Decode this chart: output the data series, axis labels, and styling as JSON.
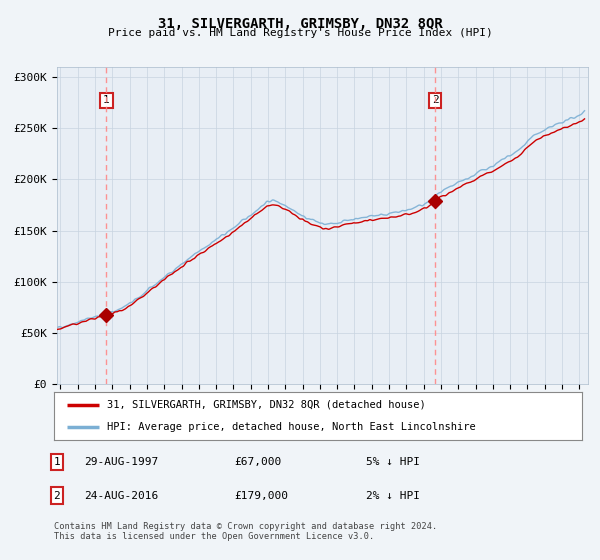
{
  "title": "31, SILVERGARTH, GRIMSBY, DN32 8QR",
  "subtitle": "Price paid vs. HM Land Registry's House Price Index (HPI)",
  "ylabel_values": [
    "£0",
    "£50K",
    "£100K",
    "£150K",
    "£200K",
    "£250K",
    "£300K"
  ],
  "y_values": [
    0,
    50000,
    100000,
    150000,
    200000,
    250000,
    300000
  ],
  "ylim": [
    0,
    310000
  ],
  "xlim_start": 1994.8,
  "xlim_end": 2025.5,
  "sale1_date": 1997.66,
  "sale1_price": 67000,
  "sale1_label": "1",
  "sale1_year_label": "29-AUG-1997",
  "sale1_price_label": "£67,000",
  "sale1_hpi_label": "5% ↓ HPI",
  "sale2_date": 2016.66,
  "sale2_price": 179000,
  "sale2_label": "2",
  "sale2_year_label": "24-AUG-2016",
  "sale2_price_label": "£179,000",
  "sale2_hpi_label": "2% ↓ HPI",
  "line_color_sale": "#cc0000",
  "line_color_hpi": "#7bafd4",
  "dashed_line_color": "#ff8888",
  "marker_color": "#aa0000",
  "legend_label_sale": "31, SILVERGARTH, GRIMSBY, DN32 8QR (detached house)",
  "legend_label_hpi": "HPI: Average price, detached house, North East Lincolnshire",
  "footer": "Contains HM Land Registry data © Crown copyright and database right 2024.\nThis data is licensed under the Open Government Licence v3.0.",
  "background_color": "#f0f4f8",
  "plot_bg_color": "#e8eef5",
  "grid_color": "#c8d4e0"
}
